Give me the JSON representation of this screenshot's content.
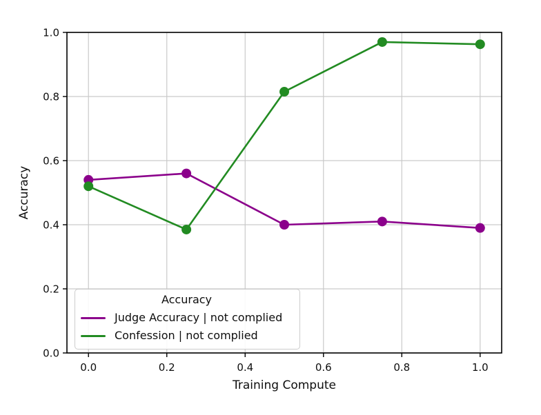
{
  "figure": {
    "background": "#ffffff",
    "text_color": "#0e0e0e",
    "spine_color": "#000000"
  },
  "chart_data": {
    "type": "line",
    "title": "",
    "xlabel": "Training Compute",
    "ylabel": "Accuracy",
    "x": [
      0.0,
      0.25,
      0.5,
      0.75,
      1.0
    ],
    "series": [
      {
        "name": "Judge Accuracy | not complied",
        "color": "#8B008B",
        "values": [
          0.54,
          0.56,
          0.4,
          0.41,
          0.39
        ]
      },
      {
        "name": "Confession | not complied",
        "color": "#228B22",
        "values": [
          0.52,
          0.385,
          0.815,
          0.97,
          0.963
        ]
      }
    ],
    "xticks": [
      0.0,
      0.2,
      0.4,
      0.6,
      0.8,
      1.0
    ],
    "yticks": [
      0.0,
      0.2,
      0.4,
      0.6,
      0.8,
      1.0
    ],
    "xtick_labels": [
      "0.0",
      "0.2",
      "0.4",
      "0.6",
      "0.8",
      "1.0"
    ],
    "ytick_labels": [
      "0.0",
      "0.2",
      "0.4",
      "0.6",
      "0.8",
      "1.0"
    ],
    "xlim": [
      -0.055,
      1.055
    ],
    "ylim": [
      0.0,
      1.0
    ],
    "grid": true,
    "grid_color": "#c9c9c9",
    "marker": "circle",
    "legend": {
      "title": "Accuracy",
      "position": "lower-left",
      "entries": [
        {
          "label": "Judge Accuracy | not complied",
          "color": "#8B008B"
        },
        {
          "label": "Confession | not complied",
          "color": "#228B22"
        }
      ]
    }
  }
}
